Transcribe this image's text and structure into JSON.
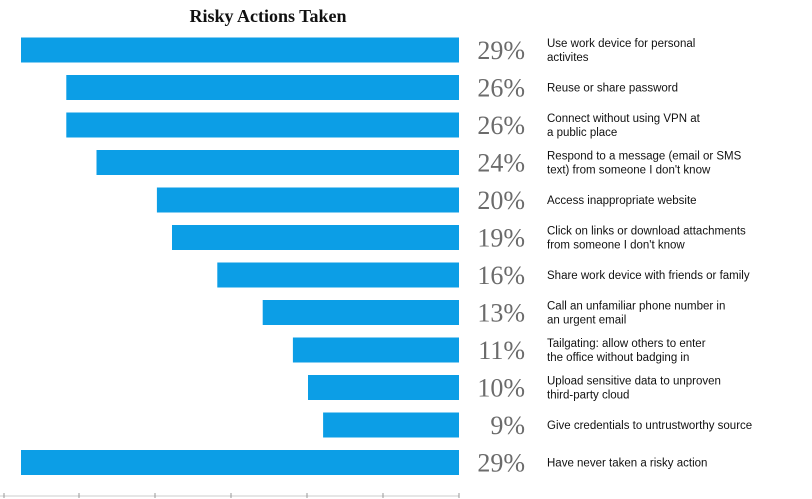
{
  "chart_data": {
    "type": "bar",
    "orientation": "horizontal",
    "title": "Risky Actions Taken",
    "xlabel": "",
    "ylabel": "",
    "xlim": [
      0,
      29
    ],
    "grid": false,
    "legend": "none",
    "bar_color": "#0c9ee6",
    "value_suffix": "%",
    "categories": [
      [
        "Use work device for personal",
        "activites"
      ],
      [
        "Reuse or share password"
      ],
      [
        "Connect without using VPN at",
        "a public place"
      ],
      [
        "Respond to a message (email or SMS",
        "text) from someone I don't know"
      ],
      [
        "Access inappropriate website"
      ],
      [
        "Click on links or download attachments",
        "from someone I don't know"
      ],
      [
        "Share work device with friends or family"
      ],
      [
        "Call an unfamiliar phone number in",
        "an urgent email"
      ],
      [
        "Tailgating: allow others to enter",
        "the office without badging in"
      ],
      [
        "Upload sensitive data to unproven",
        "third-party cloud"
      ],
      [
        "Give credentials to untrustworthy source"
      ],
      [
        "Have never taken a risky action"
      ]
    ],
    "values": [
      29,
      26,
      26,
      24,
      20,
      19,
      16,
      13,
      11,
      10,
      9,
      29
    ]
  }
}
